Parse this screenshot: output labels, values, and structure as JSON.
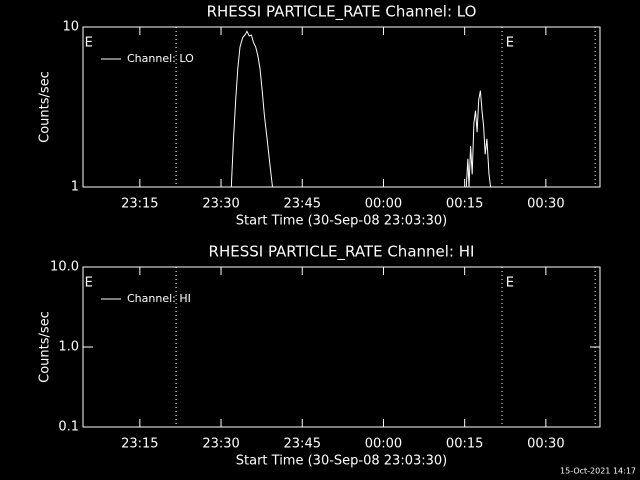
{
  "chart_data": [
    {
      "type": "line",
      "title": "RHESSI PARTICLE_RATE Channel: LO",
      "xlabel": "Start Time (30-Sep-08 23:03:30)",
      "ylabel": "Counts/sec",
      "log_y": true,
      "legend": "upper left",
      "x": [
        31.9,
        32.3,
        32.7,
        33.1,
        33.5,
        34.0,
        34.5,
        34.8,
        35.2,
        35.6,
        36.0,
        36.4,
        36.8,
        37.2,
        37.6,
        38.0,
        38.5,
        39.0,
        39.5,
        57.0,
        75.3,
        75.6,
        75.8,
        76.1,
        76.4,
        76.7,
        77.0,
        77.3,
        77.6,
        77.9,
        78.2,
        78.5,
        78.8,
        79.1,
        79.5,
        79.8
      ],
      "series": [
        {
          "name": "Channel: LO",
          "color": "#ffffff",
          "values": [
            1.0,
            2.0,
            3.5,
            5.5,
            7.5,
            8.6,
            9.0,
            9.4,
            8.8,
            8.9,
            8.0,
            7.5,
            6.6,
            5.5,
            4.0,
            2.8,
            2.0,
            1.4,
            1.0,
            null,
            1.0,
            1.5,
            1.0,
            1.8,
            1.2,
            2.5,
            3.0,
            2.2,
            3.5,
            4.0,
            3.0,
            2.4,
            1.6,
            2.0,
            1.2,
            1.0
          ]
        }
      ],
      "xlim": [
        4.5,
        100
      ],
      "xticks": [
        {
          "value": 15,
          "label": "23:15"
        },
        {
          "value": 30,
          "label": "23:30"
        },
        {
          "value": 45,
          "label": "23:45"
        },
        {
          "value": 60,
          "label": "00:00"
        },
        {
          "value": 75,
          "label": "00:15"
        },
        {
          "value": 90,
          "label": "00:30"
        }
      ],
      "ylim": [
        1,
        10
      ],
      "yticks": [
        1,
        10
      ],
      "vlines": [
        21.7,
        81.9,
        99.1
      ],
      "annotations": [
        {
          "text": "E",
          "x": 4.8
        },
        {
          "text": "E",
          "x": 82.6
        }
      ]
    },
    {
      "type": "line",
      "title": "RHESSI PARTICLE_RATE Channel: HI",
      "xlabel": "Start Time (30-Sep-08 23:03:30)",
      "ylabel": "Counts/sec",
      "log_y": true,
      "legend": "upper left",
      "x": [],
      "series": [
        {
          "name": "Channel: HI",
          "color": "#ffffff",
          "values": []
        }
      ],
      "xlim": [
        4.5,
        100
      ],
      "xticks": [
        {
          "value": 15,
          "label": "23:15"
        },
        {
          "value": 30,
          "label": "23:30"
        },
        {
          "value": 45,
          "label": "23:45"
        },
        {
          "value": 60,
          "label": "00:00"
        },
        {
          "value": 75,
          "label": "00:15"
        },
        {
          "value": 90,
          "label": "00:30"
        }
      ],
      "ylim": [
        0.1,
        10
      ],
      "yticks": [
        0.1,
        {
          "value": 1,
          "label": "1.0"
        },
        {
          "value": 10,
          "label": "10.0"
        }
      ],
      "vlines": [
        21.7,
        81.9,
        99.1
      ],
      "annotations": [
        {
          "text": "E",
          "x": 4.8
        },
        {
          "text": "E",
          "x": 82.6
        }
      ]
    }
  ],
  "timestamp": "15-Oct-2021 14:17"
}
